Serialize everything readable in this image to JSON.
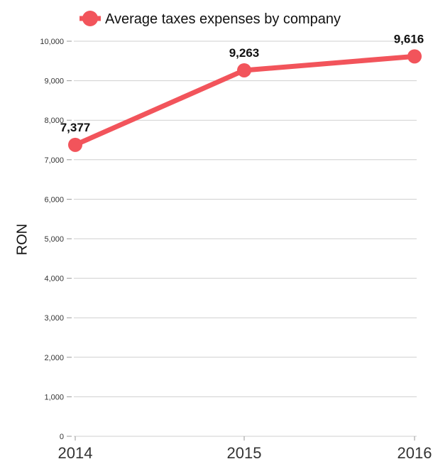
{
  "chart_data": {
    "type": "line",
    "categories": [
      "2014",
      "2015",
      "2016"
    ],
    "series": [
      {
        "name": "Average taxes expenses by company",
        "values": [
          7377,
          9263,
          9616
        ],
        "data_labels": [
          "7,377",
          "9,263",
          "9,616"
        ]
      }
    ],
    "ylabel": "RON",
    "xlabel": "",
    "ylim": [
      0,
      10000
    ],
    "yticks": [
      "0",
      "1,000",
      "2,000",
      "3,000",
      "4,000",
      "5,000",
      "6,000",
      "7,000",
      "8,000",
      "9,000",
      "10,000"
    ],
    "grid": true,
    "legend": "top",
    "color": "#f2545b"
  }
}
